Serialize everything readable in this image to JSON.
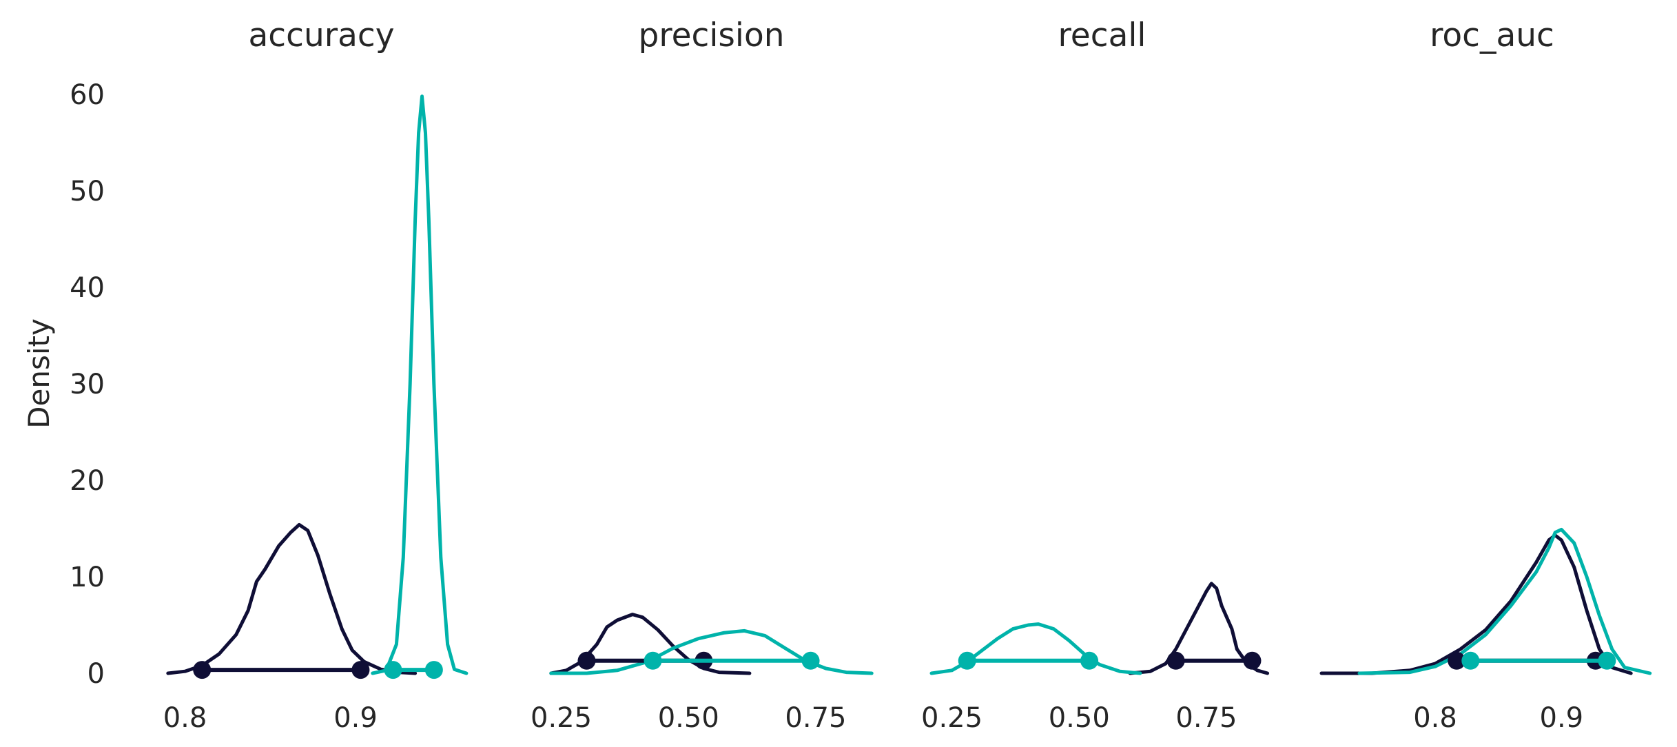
{
  "chart_data": {
    "type": "density",
    "ylabel": "Density",
    "ylim": [
      0,
      60
    ],
    "yticks": [
      0,
      10,
      20,
      30,
      40,
      50,
      60
    ],
    "grid": false,
    "legend": "none",
    "colors": {
      "series_a": "#0f0e36",
      "series_b": "#00b3aa"
    },
    "panels": [
      {
        "title": "accuracy",
        "xlim": [
          0.78,
          0.98
        ],
        "xticks": [
          0.8,
          0.9
        ],
        "xtick_labels": [
          "0.8",
          "0.9"
        ],
        "series": [
          {
            "color": "#0f0e36",
            "curve": [
              [
                0.79,
                0
              ],
              [
                0.8,
                0.2
              ],
              [
                0.81,
                0.8
              ],
              [
                0.82,
                2.0
              ],
              [
                0.83,
                4.0
              ],
              [
                0.837,
                6.5
              ],
              [
                0.842,
                9.5
              ],
              [
                0.847,
                10.8
              ],
              [
                0.855,
                13.2
              ],
              [
                0.862,
                14.6
              ],
              [
                0.867,
                15.4
              ],
              [
                0.872,
                14.8
              ],
              [
                0.878,
                12.2
              ],
              [
                0.885,
                8.2
              ],
              [
                0.892,
                4.6
              ],
              [
                0.898,
                2.4
              ],
              [
                0.905,
                1.2
              ],
              [
                0.915,
                0.4
              ],
              [
                0.925,
                0.1
              ],
              [
                0.935,
                0
              ]
            ],
            "interval": [
              0.81,
              0.903
            ],
            "interval_y": 0.35
          },
          {
            "color": "#00b3aa",
            "curve": [
              [
                0.91,
                0
              ],
              [
                0.918,
                0.3
              ],
              [
                0.924,
                3.0
              ],
              [
                0.928,
                12.0
              ],
              [
                0.932,
                30.0
              ],
              [
                0.935,
                47.0
              ],
              [
                0.937,
                56.0
              ],
              [
                0.939,
                59.8
              ],
              [
                0.941,
                56.0
              ],
              [
                0.943,
                47.0
              ],
              [
                0.946,
                30.0
              ],
              [
                0.95,
                12.0
              ],
              [
                0.954,
                3.0
              ],
              [
                0.958,
                0.4
              ],
              [
                0.965,
                0
              ]
            ],
            "interval": [
              0.922,
              0.946
            ],
            "interval_y": 0.35
          }
        ]
      },
      {
        "title": "precision",
        "xlim": [
          0.21,
          0.88
        ],
        "xticks": [
          0.25,
          0.5,
          0.75
        ],
        "xtick_labels": [
          "0.25",
          "0.50",
          "0.75"
        ],
        "series": [
          {
            "color": "#0f0e36",
            "curve": [
              [
                0.23,
                0
              ],
              [
                0.26,
                0.3
              ],
              [
                0.29,
                1.2
              ],
              [
                0.32,
                3.0
              ],
              [
                0.34,
                4.8
              ],
              [
                0.36,
                5.5
              ],
              [
                0.39,
                6.1
              ],
              [
                0.41,
                5.8
              ],
              [
                0.44,
                4.5
              ],
              [
                0.47,
                2.8
              ],
              [
                0.5,
                1.4
              ],
              [
                0.53,
                0.5
              ],
              [
                0.56,
                0.1
              ],
              [
                0.62,
                0
              ]
            ],
            "interval": [
              0.3,
              0.53
            ],
            "interval_y": 1.3
          },
          {
            "color": "#00b3aa",
            "curve": [
              [
                0.23,
                0
              ],
              [
                0.3,
                0
              ],
              [
                0.36,
                0.3
              ],
              [
                0.42,
                1.2
              ],
              [
                0.47,
                2.6
              ],
              [
                0.52,
                3.6
              ],
              [
                0.57,
                4.2
              ],
              [
                0.61,
                4.4
              ],
              [
                0.65,
                3.9
              ],
              [
                0.69,
                2.6
              ],
              [
                0.73,
                1.3
              ],
              [
                0.77,
                0.5
              ],
              [
                0.81,
                0.1
              ],
              [
                0.86,
                0
              ]
            ],
            "interval": [
              0.43,
              0.74
            ],
            "interval_y": 1.3
          }
        ]
      },
      {
        "title": "recall",
        "xlim": [
          0.21,
          0.88
        ],
        "xticks": [
          0.25,
          0.5,
          0.75
        ],
        "xtick_labels": [
          "0.25",
          "0.50",
          "0.75"
        ],
        "series": [
          {
            "color": "#0f0e36",
            "curve": [
              [
                0.6,
                0
              ],
              [
                0.64,
                0.2
              ],
              [
                0.67,
                1.0
              ],
              [
                0.69,
                2.5
              ],
              [
                0.71,
                4.5
              ],
              [
                0.73,
                6.5
              ],
              [
                0.75,
                8.5
              ],
              [
                0.76,
                9.3
              ],
              [
                0.77,
                8.8
              ],
              [
                0.78,
                7.0
              ],
              [
                0.8,
                4.6
              ],
              [
                0.81,
                2.5
              ],
              [
                0.83,
                1.0
              ],
              [
                0.85,
                0.3
              ],
              [
                0.87,
                0
              ]
            ],
            "interval": [
              0.69,
              0.84
            ],
            "interval_y": 1.3
          },
          {
            "color": "#00b3aa",
            "curve": [
              [
                0.21,
                0
              ],
              [
                0.25,
                0.3
              ],
              [
                0.28,
                1.2
              ],
              [
                0.31,
                2.4
              ],
              [
                0.34,
                3.6
              ],
              [
                0.37,
                4.6
              ],
              [
                0.4,
                5.0
              ],
              [
                0.42,
                5.1
              ],
              [
                0.45,
                4.6
              ],
              [
                0.48,
                3.4
              ],
              [
                0.51,
                2.0
              ],
              [
                0.54,
                0.9
              ],
              [
                0.58,
                0.2
              ],
              [
                0.62,
                0
              ]
            ],
            "interval": [
              0.28,
              0.52
            ],
            "interval_y": 1.3
          }
        ]
      },
      {
        "title": "roc_auc",
        "xlim": [
          0.71,
          0.98
        ],
        "xticks": [
          0.8,
          0.9
        ],
        "xtick_labels": [
          "0.8",
          "0.9"
        ],
        "series": [
          {
            "color": "#0f0e36",
            "curve": [
              [
                0.71,
                0
              ],
              [
                0.75,
                0
              ],
              [
                0.78,
                0.3
              ],
              [
                0.8,
                1.0
              ],
              [
                0.82,
                2.5
              ],
              [
                0.84,
                4.5
              ],
              [
                0.86,
                7.5
              ],
              [
                0.88,
                11.5
              ],
              [
                0.89,
                13.8
              ],
              [
                0.895,
                14.3
              ],
              [
                0.9,
                13.8
              ],
              [
                0.91,
                11.0
              ],
              [
                0.92,
                6.5
              ],
              [
                0.93,
                2.5
              ],
              [
                0.94,
                0.6
              ],
              [
                0.955,
                0
              ]
            ],
            "interval": [
              0.817,
              0.927
            ],
            "interval_y": 1.3
          },
          {
            "color": "#00b3aa",
            "curve": [
              [
                0.74,
                0
              ],
              [
                0.78,
                0.1
              ],
              [
                0.8,
                0.7
              ],
              [
                0.82,
                2.0
              ],
              [
                0.84,
                4.0
              ],
              [
                0.86,
                7.0
              ],
              [
                0.88,
                10.5
              ],
              [
                0.89,
                13.0
              ],
              [
                0.895,
                14.6
              ],
              [
                0.9,
                14.9
              ],
              [
                0.91,
                13.5
              ],
              [
                0.92,
                10.0
              ],
              [
                0.93,
                6.0
              ],
              [
                0.94,
                2.5
              ],
              [
                0.95,
                0.6
              ],
              [
                0.97,
                0
              ]
            ],
            "interval": [
              0.828,
              0.936
            ],
            "interval_y": 1.3
          }
        ]
      }
    ]
  }
}
